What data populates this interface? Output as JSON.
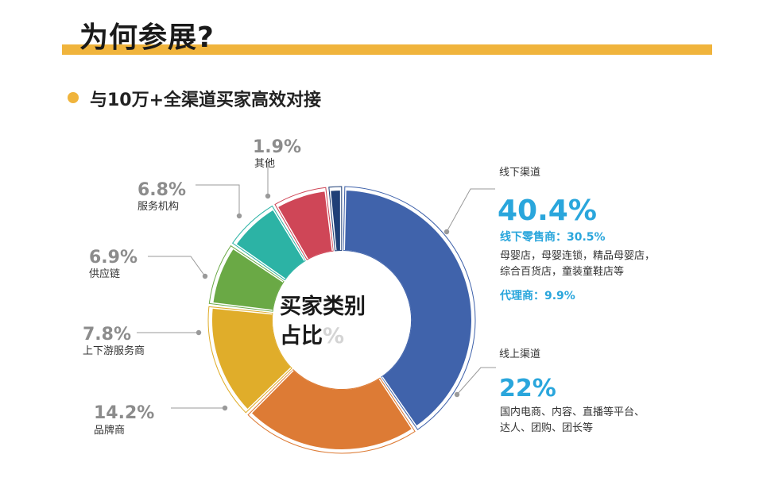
{
  "page": {
    "title": "为何参展?",
    "subtitle": "与10万+全渠道买家高效对接"
  },
  "chart_data": {
    "type": "pie",
    "variant": "donut",
    "center_label": [
      "买家类别",
      "占比",
      "%"
    ],
    "slices": [
      {
        "name": "线下渠道",
        "value": 40.4,
        "label": "40.4%",
        "color": "#4063ab"
      },
      {
        "name": "线上渠道",
        "value": 22,
        "label": "22%",
        "color": "#dd7b35"
      },
      {
        "name": "品牌商",
        "value": 14.2,
        "label": "14.2%",
        "color": "#e0ad2a"
      },
      {
        "name": "上下游服务商",
        "value": 7.8,
        "label": "7.8%",
        "color": "#6aa945"
      },
      {
        "name": "供应链",
        "value": 6.9,
        "label": "6.9%",
        "color": "#2cb3a5"
      },
      {
        "name": "服务机构",
        "value": 6.8,
        "label": "6.8%",
        "color": "#cf4657"
      },
      {
        "name": "其他",
        "value": 1.9,
        "label": "1.9%",
        "color": "#1f3f77"
      }
    ]
  },
  "offline_panel": {
    "heading": "线下渠道",
    "value": "40.4%",
    "retail_label": "线下零售商：30.5%",
    "retail_desc_1": "母婴店，母婴连锁，精品母婴店，",
    "retail_desc_2": "综合百货店，童装童鞋店等",
    "agent_label": "代理商：9.9%"
  },
  "online_panel": {
    "heading": "线上渠道",
    "value": "22%",
    "desc_1": "国内电商、内容、直播等平台、",
    "desc_2": "达人、团购、团长等"
  }
}
